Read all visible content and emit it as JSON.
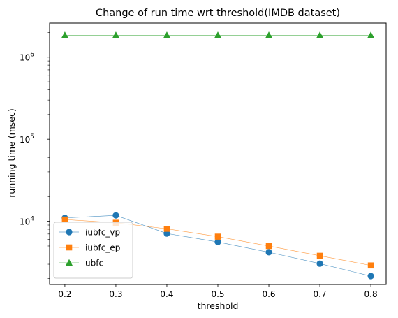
{
  "chart_data": {
    "type": "line",
    "title": "Change of run time wrt threshold(IMDB dataset)",
    "xlabel": "threshold",
    "ylabel": "running time (msec)",
    "yscale": "log",
    "xlim": [
      0.17,
      0.83
    ],
    "ylim": [
      1700,
      2600000
    ],
    "x": [
      0.2,
      0.3,
      0.4,
      0.5,
      0.6,
      0.7,
      0.8
    ],
    "x_ticks": [
      "0.2",
      "0.3",
      "0.4",
      "0.5",
      "0.6",
      "0.7",
      "0.8"
    ],
    "y_ticks": [
      {
        "value": 10000,
        "base": "10",
        "exp": "4"
      },
      {
        "value": 100000,
        "base": "10",
        "exp": "5"
      },
      {
        "value": 1000000,
        "base": "10",
        "exp": "6"
      }
    ],
    "legend_position": "lower-left",
    "series": [
      {
        "name": "iubfc_vp",
        "color": "#1f77b4",
        "marker": "circle",
        "values": [
          11000,
          11800,
          7100,
          5600,
          4200,
          3050,
          2150
        ]
      },
      {
        "name": "iubfc_ep",
        "color": "#ff7f0e",
        "marker": "square",
        "values": [
          10500,
          9600,
          8100,
          6500,
          5000,
          3800,
          2900
        ]
      },
      {
        "name": "ubfc",
        "color": "#2ca02c",
        "marker": "triangle",
        "values": [
          1850000,
          1850000,
          1850000,
          1850000,
          1850000,
          1850000,
          1850000
        ]
      }
    ]
  }
}
